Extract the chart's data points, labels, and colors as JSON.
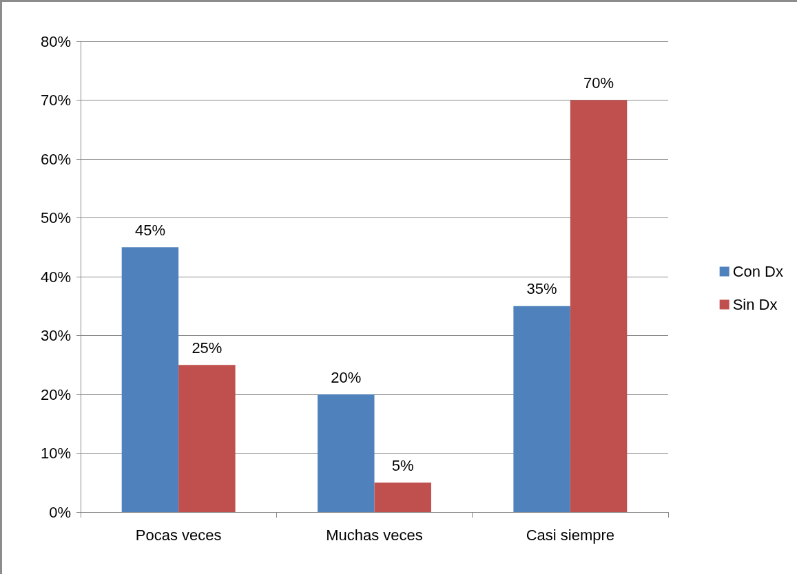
{
  "chart_data": {
    "type": "bar",
    "categories": [
      "Pocas veces",
      "Muchas veces",
      "Casi siempre"
    ],
    "series": [
      {
        "name": "Con Dx",
        "color": "#4f81bd",
        "values": [
          45,
          20,
          35
        ],
        "value_labels": [
          "45%",
          "20%",
          "35%"
        ]
      },
      {
        "name": "Sin Dx",
        "color": "#c0504d",
        "values": [
          25,
          5,
          70
        ],
        "value_labels": [
          "25%",
          "5%",
          "70%"
        ]
      }
    ],
    "ylim": [
      0,
      80
    ],
    "yticks": [
      {
        "value": 0,
        "label": "0%"
      },
      {
        "value": 10,
        "label": "10%"
      },
      {
        "value": 20,
        "label": "20%"
      },
      {
        "value": 30,
        "label": "30%"
      },
      {
        "value": 40,
        "label": "40%"
      },
      {
        "value": 50,
        "label": "50%"
      },
      {
        "value": 60,
        "label": "60%"
      },
      {
        "value": 70,
        "label": "70%"
      },
      {
        "value": 80,
        "label": "80%"
      }
    ],
    "grid": "y",
    "legend": "right"
  }
}
